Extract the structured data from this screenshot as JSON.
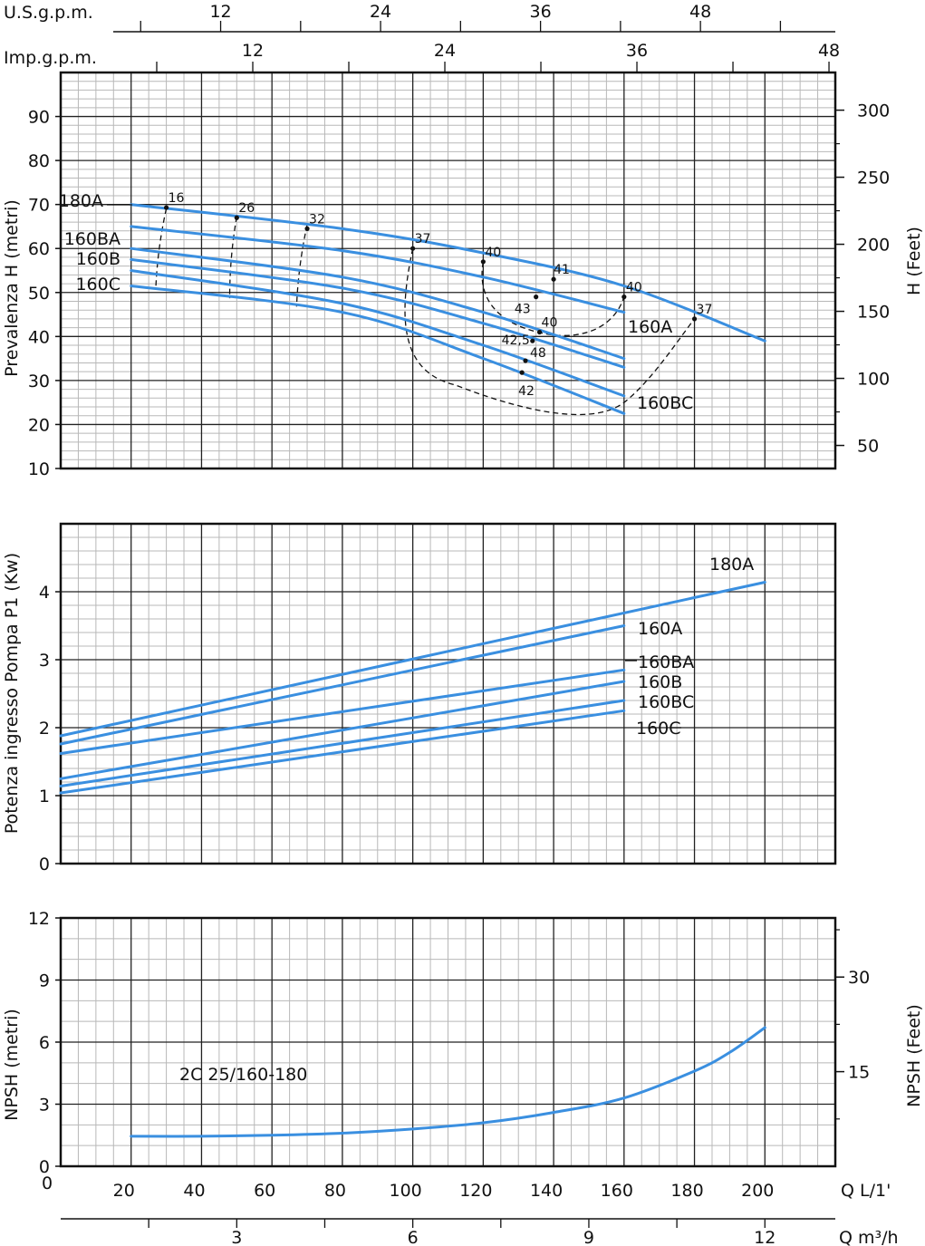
{
  "colors": {
    "curve": "#3a8fe0",
    "grid_major": "#222222",
    "grid_minor": "#b8b8b8",
    "frame": "#111111",
    "dash": "#111111"
  },
  "chart_data": [
    {
      "id": "head",
      "type": "line",
      "ylabel": "Prevalenza H (metri)",
      "ylabel_right": "H (Feet)",
      "xlim": [
        0,
        220
      ],
      "ylim": [
        10,
        100
      ],
      "yticks": [
        10,
        20,
        30,
        40,
        50,
        60,
        70,
        80,
        90
      ],
      "yticks_right": [
        50,
        100,
        150,
        200,
        250,
        300
      ],
      "top_axes": [
        {
          "label": "U.S.g.p.m.",
          "ticks": [
            "12",
            "24",
            "36",
            "48"
          ]
        },
        {
          "label": "Imp.g.p.m.",
          "ticks": [
            "12",
            "24",
            "36",
            "48"
          ]
        }
      ],
      "series": [
        {
          "name": "180A",
          "x": [
            20,
            80,
            120,
            160,
            200
          ],
          "y": [
            70,
            64.5,
            59,
            51.5,
            39
          ]
        },
        {
          "name": "160A",
          "x": [
            20,
            80,
            120,
            160
          ],
          "y": [
            65,
            59.5,
            53.5,
            45.5
          ]
        },
        {
          "name": "160BA",
          "x": [
            20,
            80,
            120,
            160
          ],
          "y": [
            60,
            53.5,
            45.5,
            35
          ]
        },
        {
          "name": "160B",
          "x": [
            20,
            80,
            120,
            160
          ],
          "y": [
            57.5,
            51,
            43,
            33
          ]
        },
        {
          "name": "160BC",
          "x": [
            20,
            80,
            120,
            160
          ],
          "y": [
            55,
            47.5,
            38,
            26.5
          ]
        },
        {
          "name": "160C",
          "x": [
            20,
            80,
            120,
            160
          ],
          "y": [
            51.5,
            45.5,
            35,
            22.5
          ]
        }
      ],
      "efficiency_labels": [
        {
          "text": "16",
          "x": 30,
          "y": 69.3
        },
        {
          "text": "26",
          "x": 50,
          "y": 67
        },
        {
          "text": "32",
          "x": 70,
          "y": 64.5
        },
        {
          "text": "37",
          "x": 100,
          "y": 60
        },
        {
          "text": "40",
          "x": 120,
          "y": 57
        },
        {
          "text": "41",
          "x": 140,
          "y": 53
        },
        {
          "text": "43",
          "x": 135,
          "y": 49
        },
        {
          "text": "40",
          "x": 160,
          "y": 49
        },
        {
          "text": "40",
          "x": 136,
          "y": 41
        },
        {
          "text": "42,5",
          "x": 134,
          "y": 39
        },
        {
          "text": "48",
          "x": 132,
          "y": 34.5
        },
        {
          "text": "42",
          "x": 131,
          "y": 31.8
        },
        {
          "text": "37",
          "x": 180,
          "y": 44
        }
      ]
    },
    {
      "id": "power",
      "type": "line",
      "ylabel": "Potenza ingresso Pompa P1 (Kw)",
      "xlim": [
        0,
        220
      ],
      "ylim": [
        0,
        5
      ],
      "yticks": [
        0,
        1,
        2,
        3,
        4
      ],
      "series": [
        {
          "name": "180A",
          "x": [
            0,
            200
          ],
          "y": [
            1.88,
            4.14
          ]
        },
        {
          "name": "160A",
          "x": [
            0,
            160
          ],
          "y": [
            1.76,
            3.5
          ]
        },
        {
          "name": "160BA",
          "x": [
            0,
            160
          ],
          "y": [
            1.62,
            2.85
          ]
        },
        {
          "name": "160B",
          "x": [
            0,
            160
          ],
          "y": [
            1.25,
            2.68
          ]
        },
        {
          "name": "160BC",
          "x": [
            0,
            160
          ],
          "y": [
            1.14,
            2.4
          ]
        },
        {
          "name": "160C",
          "x": [
            0,
            160
          ],
          "y": [
            1.04,
            2.25
          ]
        }
      ]
    },
    {
      "id": "npsh",
      "type": "line",
      "ylabel": "NPSH (metri)",
      "ylabel_right": "NPSH (Feet)",
      "annotation": "2C 25/160-180",
      "xlim": [
        0,
        220
      ],
      "ylim": [
        0,
        12
      ],
      "yticks": [
        0,
        3,
        6,
        9,
        12
      ],
      "yticks_right": [
        15,
        30
      ],
      "xlabel": "Q L/1'",
      "xticks": [
        20,
        40,
        60,
        80,
        100,
        120,
        140,
        160,
        180,
        200
      ],
      "xlabel_secondary": "Q m³/h",
      "xticks_secondary": [
        3,
        6,
        9,
        12
      ],
      "series": [
        {
          "name": "2C 25/160-180",
          "x": [
            20,
            40,
            60,
            80,
            100,
            120,
            140,
            160,
            180,
            190,
            200
          ],
          "y": [
            1.45,
            1.45,
            1.5,
            1.6,
            1.8,
            2.1,
            2.6,
            3.3,
            4.6,
            5.5,
            6.7
          ]
        }
      ]
    }
  ]
}
